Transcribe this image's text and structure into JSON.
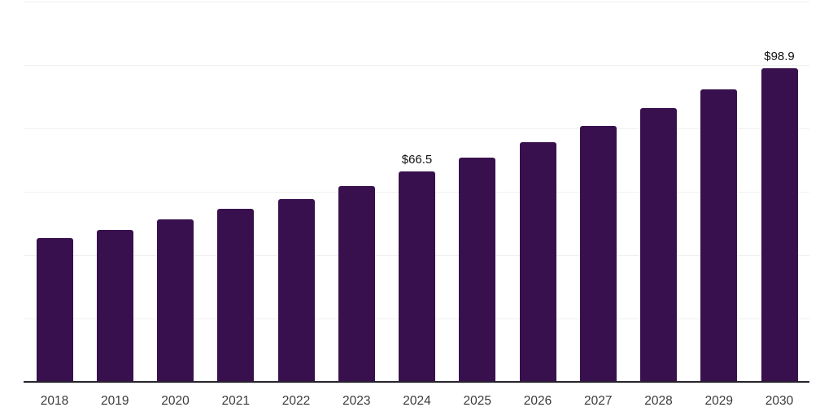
{
  "chart_data": {
    "type": "bar",
    "categories": [
      "2018",
      "2019",
      "2020",
      "2021",
      "2022",
      "2023",
      "2024",
      "2025",
      "2026",
      "2027",
      "2028",
      "2029",
      "2030"
    ],
    "values": [
      45.3,
      47.9,
      51.2,
      54.5,
      57.8,
      61.9,
      66.5,
      70.9,
      75.7,
      80.8,
      86.5,
      92.3,
      98.9
    ],
    "point_labels": [
      "",
      "",
      "",
      "",
      "",
      "",
      "$66.5",
      "",
      "",
      "",
      "",
      "",
      "$98.9"
    ],
    "title": "",
    "xlabel": "",
    "ylabel": "",
    "ylim": [
      0,
      120
    ],
    "grid_step": 20,
    "grid": true,
    "legend_position": "none",
    "colors": {
      "bar": "#38104E",
      "grid": "#f0f0f0",
      "axis_line": "#26232d",
      "tick_label": "#3b3b3b",
      "value_label": "#111111",
      "background": "#ffffff"
    }
  }
}
